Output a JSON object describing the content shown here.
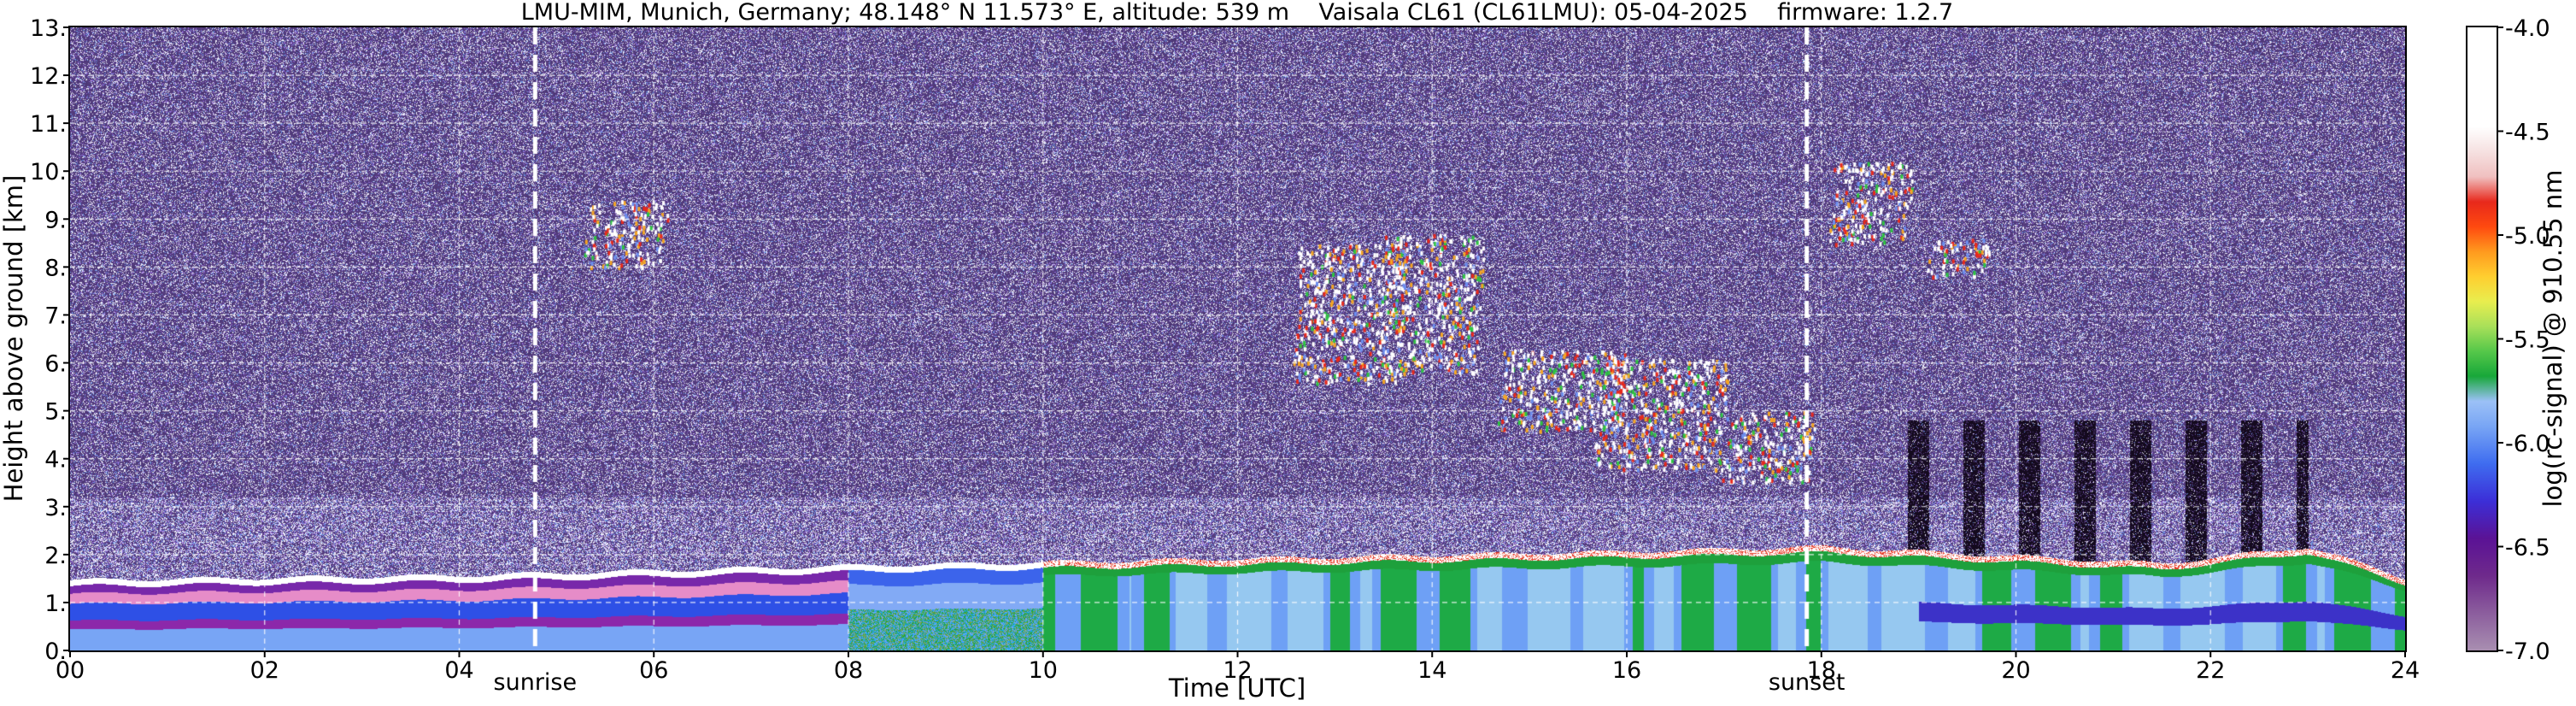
{
  "chart_data": {
    "type": "heatmap",
    "title": "LMU-MIM, Munich, Germany; 48.148° N 11.573° E, altitude: 539 m    Vaisala CL61 (CL61LMU): 05-04-2025    firmware: 1.2.7",
    "xlabel": "Time [UTC]",
    "ylabel": "Height above ground [km]",
    "xlim": [
      0,
      24
    ],
    "ylim": [
      0,
      13
    ],
    "x_ticks": [
      "00",
      "02",
      "04",
      "06",
      "08",
      "10",
      "12",
      "14",
      "16",
      "18",
      "20",
      "22",
      "24"
    ],
    "y_ticks": [
      "0.",
      "1.",
      "2.",
      "3.",
      "4.",
      "5.",
      "6.",
      "7.",
      "8.",
      "9.",
      "10.",
      "11.",
      "12.",
      "13."
    ],
    "grid": true,
    "annotations": [
      {
        "label": "sunrise",
        "time_utc": 4.78
      },
      {
        "label": "sunset",
        "time_utc": 17.85
      }
    ],
    "colorbar": {
      "label": "log(rc-signal) @ 910.55 nm",
      "range": [
        -7.0,
        -4.0
      ],
      "ticks": [
        "-4.0",
        "-4.5",
        "-5.0",
        "-5.5",
        "-6.0",
        "-6.5",
        "-7.0"
      ],
      "tick_values": [
        -4.0,
        -4.5,
        -5.0,
        -5.5,
        -6.0,
        -6.5,
        -7.0
      ]
    },
    "features": {
      "boundary_layer_top_km": [
        {
          "time_utc": 0,
          "value": 1.4
        },
        {
          "time_utc": 4,
          "value": 1.5
        },
        {
          "time_utc": 8,
          "value": 1.7
        },
        {
          "time_utc": 12,
          "value": 1.85
        },
        {
          "time_utc": 16,
          "value": 2.0
        },
        {
          "time_utc": 18,
          "value": 2.1
        },
        {
          "time_utc": 21.5,
          "value": 1.75
        },
        {
          "time_utc": 23,
          "value": 2.1
        },
        {
          "time_utc": 24,
          "value": 1.45
        }
      ],
      "cirrus_clouds": [
        {
          "time_start": 5.3,
          "time_end": 6.1,
          "base_km": 8.0,
          "top_km": 9.4
        },
        {
          "time_start": 12.6,
          "time_end": 13.7,
          "base_km": 5.6,
          "top_km": 8.5
        },
        {
          "time_start": 13.5,
          "time_end": 14.5,
          "base_km": 5.8,
          "top_km": 8.7
        },
        {
          "time_start": 14.7,
          "time_end": 16.0,
          "base_km": 4.6,
          "top_km": 6.3
        },
        {
          "time_start": 15.7,
          "time_end": 17.0,
          "base_km": 3.8,
          "top_km": 6.1
        },
        {
          "time_start": 17.0,
          "time_end": 17.9,
          "base_km": 3.5,
          "top_km": 5.0
        },
        {
          "time_start": 18.1,
          "time_end": 18.9,
          "base_km": 8.5,
          "top_km": 10.2
        },
        {
          "time_start": 19.1,
          "time_end": 19.7,
          "base_km": 7.8,
          "top_km": 8.6
        }
      ]
    },
    "colors": {
      "noise": "#4a3a78",
      "white": "#ffffff",
      "light_blue": "#7fa4f4",
      "blue": "#2e4fe6",
      "green": "#1ab43c",
      "purple": "#7a22a0"
    }
  }
}
